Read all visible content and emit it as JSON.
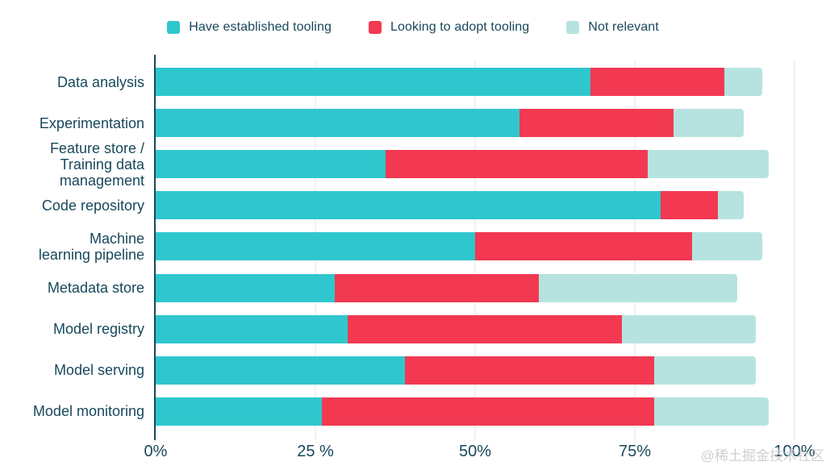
{
  "watermark": "@稀土掘金技术社区",
  "colors": {
    "background": "#ffffff",
    "text": "#17485c",
    "axis": "#17485c",
    "gridline": "#e4e4e4"
  },
  "chart_data": {
    "type": "bar",
    "orientation": "horizontal-stacked",
    "title": "",
    "xlabel": "",
    "ylabel": "",
    "xlim": [
      0,
      100
    ],
    "grid": "vertical",
    "legend_position": "top",
    "categories": [
      "Data analysis",
      "Experimentation",
      "Feature store / Training data management",
      "Code repository",
      "Machine learning pipeline",
      "Metadata store",
      "Model registry",
      "Model serving",
      "Model monitoring"
    ],
    "label_lines": [
      [
        "Data analysis"
      ],
      [
        "Experimentation"
      ],
      [
        "Feature store /",
        "Training data",
        "management"
      ],
      [
        "Code repository"
      ],
      [
        "Machine",
        "learning pipeline"
      ],
      [
        "Metadata store"
      ],
      [
        "Model registry"
      ],
      [
        "Model serving"
      ],
      [
        "Model monitoring"
      ]
    ],
    "series": [
      {
        "name": "Have established tooling",
        "color": "#2fc7cd",
        "values": [
          68,
          57,
          36,
          79,
          50,
          28,
          30,
          39,
          26
        ]
      },
      {
        "name": "Looking to adopt tooling",
        "color": "#f33952",
        "values": [
          21,
          24,
          41,
          9,
          34,
          32,
          43,
          39,
          52
        ]
      },
      {
        "name": "Not relevant",
        "color": "#b6e3e0",
        "values": [
          6,
          11,
          19,
          4,
          11,
          31,
          21,
          16,
          18
        ]
      }
    ],
    "x_ticks": [
      {
        "value": 0,
        "label": "0%"
      },
      {
        "value": 25,
        "label": "25 %"
      },
      {
        "value": 50,
        "label": "50%"
      },
      {
        "value": 75,
        "label": "75%"
      },
      {
        "value": 100,
        "label": "100%"
      }
    ]
  }
}
